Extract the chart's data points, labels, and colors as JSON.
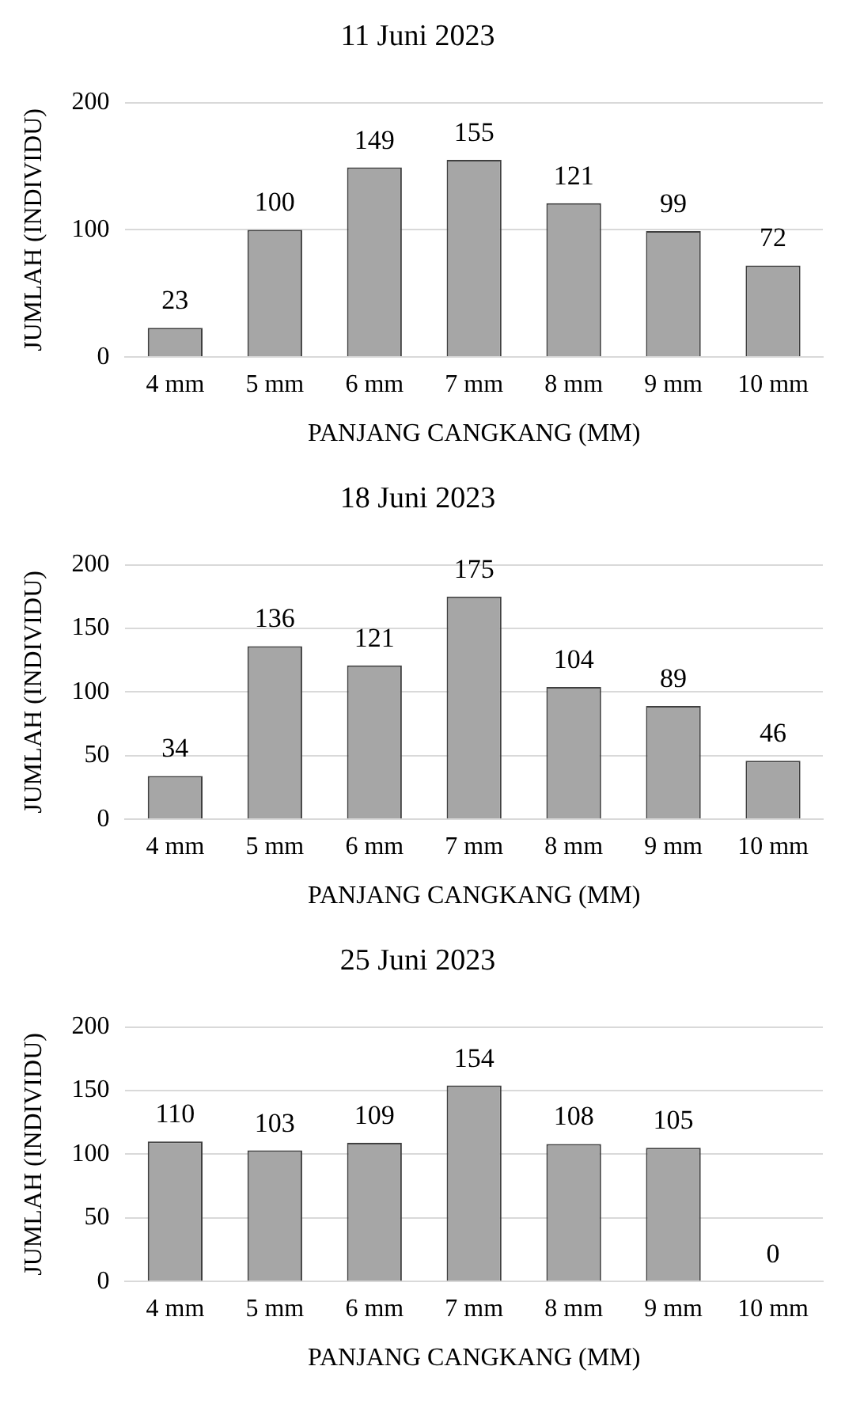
{
  "chart_data": [
    {
      "type": "bar",
      "title": "11 Juni 2023",
      "xlabel": "PANJANG CANGKANG (MM)",
      "ylabel": "JUMLAH (INDIVIDU)",
      "categories": [
        "4 mm",
        "5 mm",
        "6 mm",
        "7 mm",
        "8 mm",
        "9 mm",
        "10 mm"
      ],
      "values": [
        23,
        100,
        149,
        155,
        121,
        99,
        72
      ],
      "color": "#a6a6a6",
      "ylim": [
        0,
        200
      ],
      "yticks": [
        0,
        100,
        200
      ],
      "grid": "y",
      "data_labels": true
    },
    {
      "type": "bar",
      "title": "18 Juni 2023",
      "xlabel": "PANJANG CANGKANG (MM)",
      "ylabel": "JUMLAH (INDIVIDU)",
      "categories": [
        "4 mm",
        "5 mm",
        "6 mm",
        "7 mm",
        "8 mm",
        "9 mm",
        "10 mm"
      ],
      "values": [
        34,
        136,
        121,
        175,
        104,
        89,
        46
      ],
      "color": "#a6a6a6",
      "ylim": [
        0,
        200
      ],
      "yticks": [
        0,
        50,
        100,
        150,
        200
      ],
      "grid": "y",
      "data_labels": true
    },
    {
      "type": "bar",
      "title": "25 Juni 2023",
      "xlabel": "PANJANG CANGKANG (MM)",
      "ylabel": "JUMLAH (INDIVIDU)",
      "categories": [
        "4 mm",
        "5 mm",
        "6 mm",
        "7 mm",
        "8 mm",
        "9 mm",
        "10 mm"
      ],
      "values": [
        110,
        103,
        109,
        154,
        108,
        105,
        0
      ],
      "color": "#a6a6a6",
      "ylim": [
        0,
        200
      ],
      "yticks": [
        0,
        50,
        100,
        150,
        200
      ],
      "grid": "y",
      "data_labels": true
    }
  ]
}
